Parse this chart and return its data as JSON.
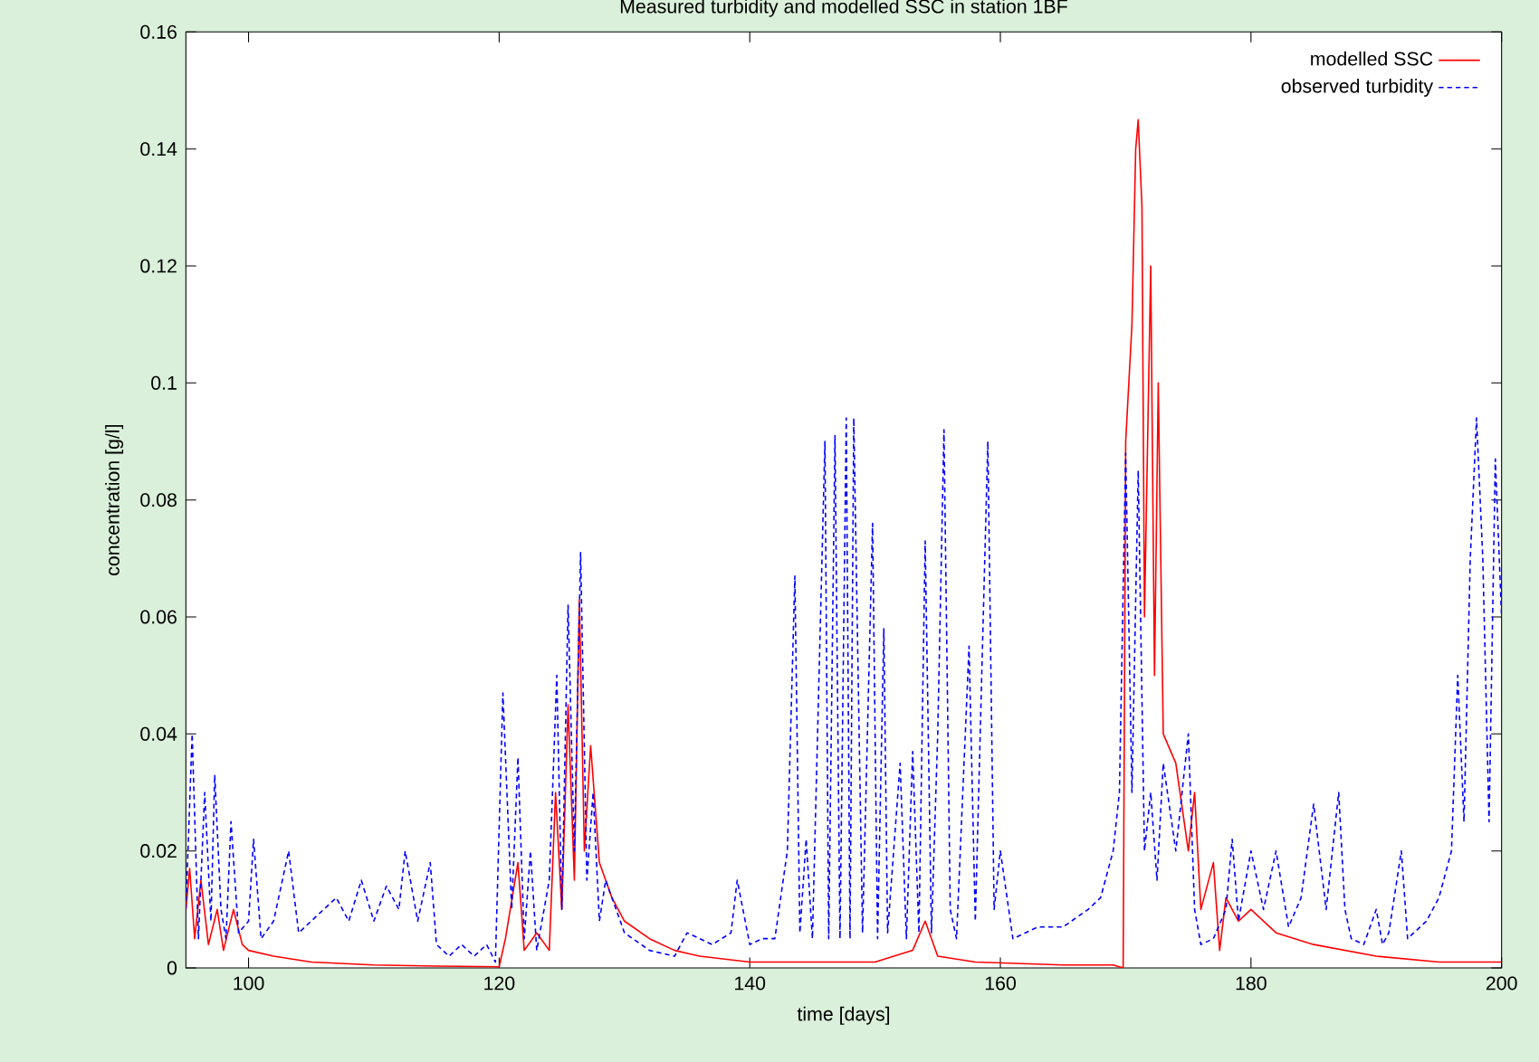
{
  "chart_data": {
    "type": "line",
    "title": "Measured turbidity and modelled SSC in station 1BF",
    "xlabel": "time [days]",
    "ylabel": "concentration [g/l]",
    "xlim": [
      95,
      200
    ],
    "xticks": [
      100,
      120,
      140,
      160,
      180,
      200
    ],
    "ylim": [
      0,
      0.16
    ],
    "yticks": [
      0,
      0.02,
      0.04,
      0.06,
      0.08,
      0.1,
      0.12,
      0.14,
      0.16
    ],
    "legend": "top right",
    "series": [
      {
        "name": "modelled SSC",
        "color": "#ff0000",
        "line_style": "solid",
        "x": [
          95,
          95.3,
          95.7,
          96.2,
          96.8,
          97.5,
          98,
          98.8,
          99.5,
          100,
          102,
          105,
          110,
          115,
          120,
          120.5,
          121.5,
          122,
          123,
          124,
          124.5,
          125,
          125.5,
          126,
          126.4,
          126.8,
          127.3,
          128,
          129,
          130,
          132,
          134,
          136,
          140,
          145,
          150,
          153,
          154,
          155,
          158,
          165,
          169,
          169.8,
          170,
          170.5,
          170.8,
          171,
          171.3,
          171.5,
          172,
          172.3,
          172.6,
          173,
          174,
          175,
          175.5,
          176,
          177,
          177.5,
          178,
          179,
          180,
          182,
          185,
          190,
          195,
          200
        ],
        "values": [
          0.01,
          0.017,
          0.005,
          0.015,
          0.004,
          0.01,
          0.003,
          0.01,
          0.004,
          0.003,
          0.002,
          0.001,
          0.0005,
          0.0003,
          0.0002,
          0.005,
          0.018,
          0.003,
          0.006,
          0.003,
          0.03,
          0.01,
          0.045,
          0.015,
          0.063,
          0.02,
          0.038,
          0.018,
          0.012,
          0.008,
          0.005,
          0.003,
          0.002,
          0.001,
          0.001,
          0.001,
          0.003,
          0.008,
          0.002,
          0.001,
          0.0005,
          0.0005,
          0,
          0.09,
          0.11,
          0.14,
          0.145,
          0.13,
          0.06,
          0.12,
          0.05,
          0.1,
          0.04,
          0.035,
          0.02,
          0.03,
          0.01,
          0.018,
          0.003,
          0.012,
          0.008,
          0.01,
          0.006,
          0.004,
          0.002,
          0.001,
          0.001
        ]
      },
      {
        "name": "observed turbidity",
        "color": "#0000ff",
        "line_style": "dashed",
        "x": [
          95,
          95.5,
          96,
          96.5,
          97,
          97.3,
          97.8,
          98.2,
          98.6,
          99.2,
          100,
          100.4,
          101,
          102,
          103.2,
          104,
          105,
          106,
          107,
          108,
          109,
          110,
          111,
          112,
          112.5,
          113.5,
          114.5,
          115,
          116,
          117,
          118,
          119,
          119.7,
          120.3,
          121,
          121.5,
          122,
          122.5,
          123,
          124,
          124.6,
          125,
          125.5,
          126,
          126.5,
          127,
          127.5,
          128,
          128.5,
          130,
          132,
          134,
          135,
          137,
          138.5,
          139,
          140,
          141,
          142,
          143,
          143.6,
          144,
          144.5,
          145,
          146,
          146.3,
          146.8,
          147.2,
          147.7,
          148,
          148.3,
          149,
          149.8,
          150.2,
          150.7,
          151,
          152,
          152.5,
          153,
          153.5,
          154,
          154.5,
          155,
          155.5,
          156,
          156.5,
          157.5,
          158,
          159,
          159.5,
          160,
          161,
          163,
          165,
          167,
          168,
          169,
          169.5,
          170,
          170.5,
          171,
          171.5,
          172,
          172.5,
          173,
          174,
          175,
          175.5,
          176,
          177,
          178,
          178.5,
          179,
          180,
          181,
          182,
          183,
          184,
          185,
          186,
          187,
          187.5,
          188,
          189,
          190,
          190.5,
          191,
          192,
          192.5,
          193,
          194,
          195,
          196,
          196.5,
          197,
          197.5,
          198,
          198.5,
          199,
          199.5,
          200
        ],
        "values": [
          0.01,
          0.04,
          0.005,
          0.03,
          0.008,
          0.033,
          0.01,
          0.005,
          0.025,
          0.006,
          0.008,
          0.022,
          0.005,
          0.008,
          0.02,
          0.006,
          0.008,
          0.01,
          0.012,
          0.008,
          0.015,
          0.008,
          0.014,
          0.01,
          0.02,
          0.008,
          0.018,
          0.004,
          0.002,
          0.004,
          0.002,
          0.004,
          0.001,
          0.047,
          0.01,
          0.036,
          0.005,
          0.02,
          0.003,
          0.015,
          0.05,
          0.01,
          0.062,
          0.02,
          0.071,
          0.015,
          0.03,
          0.008,
          0.015,
          0.006,
          0.003,
          0.002,
          0.006,
          0.004,
          0.006,
          0.015,
          0.004,
          0.005,
          0.005,
          0.02,
          0.067,
          0.006,
          0.022,
          0.005,
          0.09,
          0.005,
          0.091,
          0.005,
          0.094,
          0.005,
          0.094,
          0.006,
          0.076,
          0.005,
          0.058,
          0.006,
          0.035,
          0.005,
          0.037,
          0.006,
          0.073,
          0.006,
          0.04,
          0.092,
          0.01,
          0.005,
          0.055,
          0.008,
          0.09,
          0.01,
          0.02,
          0.005,
          0.007,
          0.007,
          0.01,
          0.012,
          0.02,
          0.03,
          0.088,
          0.03,
          0.085,
          0.02,
          0.03,
          0.015,
          0.035,
          0.02,
          0.04,
          0.01,
          0.004,
          0.005,
          0.01,
          0.022,
          0.008,
          0.02,
          0.01,
          0.02,
          0.007,
          0.012,
          0.028,
          0.01,
          0.03,
          0.01,
          0.005,
          0.004,
          0.01,
          0.004,
          0.006,
          0.02,
          0.005,
          0.006,
          0.008,
          0.012,
          0.02,
          0.05,
          0.025,
          0.07,
          0.094,
          0.07,
          0.025,
          0.087,
          0.06
        ]
      }
    ]
  }
}
